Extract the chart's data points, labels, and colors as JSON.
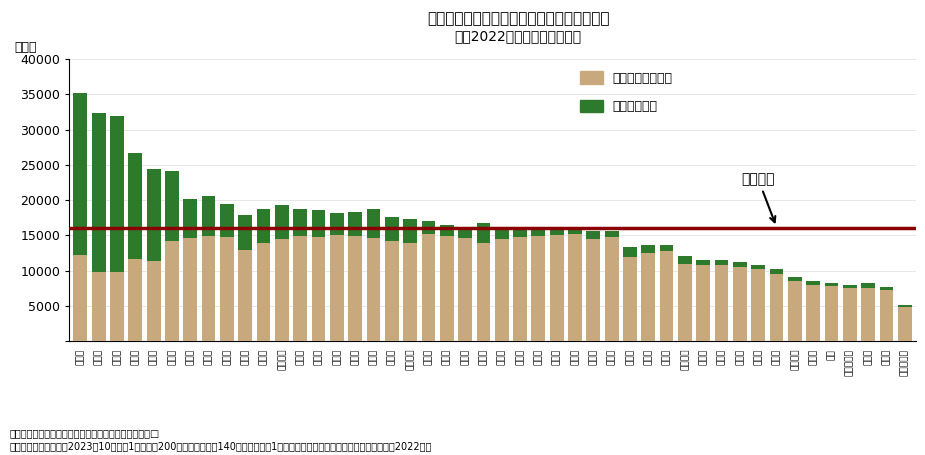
{
  "title_line1": "ガソリン・灯油価格上昇による年間負担増額",
  "title_line2": "（対2022年、一世帯あたり）",
  "ylabel": "（円）",
  "national_avg": 16000,
  "national_avg_label": "全国平均",
  "source_line1": "（出所）総務省統計局「家計調査報告」より筆者試算□",
  "source_line2": "（注）ガソリン価格が2023年10月以降1リットル200円、灯油価格が140円に上昇し、1年間その水準で推移した場合の負担増額（対2022年）",
  "legend_gasoline": "ガソリン負担増分",
  "legend_kerosene": "灯油負担増分",
  "gasoline_color": "#C8A97E",
  "kerosene_color": "#2D7A2D",
  "avg_line_color": "#8B0000",
  "categories": [
    "札幌市",
    "青森市",
    "盛岡市",
    "秋田市",
    "山形市",
    "福島市",
    "長野市",
    "富山市",
    "金沢市",
    "新潟市",
    "福井市",
    "宇都宮市",
    "水戸市",
    "前橋市",
    "甲府市",
    "仙台市",
    "岐阜市",
    "大分市",
    "鹿児島市",
    "宮崎市",
    "熊本市",
    "佐賀市",
    "那覇市",
    "福岡市",
    "高知市",
    "松山市",
    "高松市",
    "徳島市",
    "広島市",
    "岡山市",
    "鳥取市",
    "松江市",
    "山口市",
    "和歌山市",
    "奈良市",
    "大津市",
    "京都市",
    "神戸市",
    "大阪市",
    "名古屋市",
    "静岡市",
    "津市",
    "さいたま市",
    "横浜市",
    "千葉市",
    "東京都区部"
  ],
  "gasoline": [
    12200,
    9800,
    9800,
    11700,
    11400,
    14200,
    14700,
    14900,
    14800,
    13000,
    14000,
    14500,
    14900,
    14800,
    15000,
    14900,
    14700,
    14200,
    14000,
    15200,
    14900,
    14700,
    14000,
    14500,
    14800,
    14900,
    15000,
    15200,
    14500,
    14800,
    12000,
    12500,
    12800,
    11000,
    10800,
    10800,
    10500,
    10200,
    9500,
    8500,
    8000,
    7800,
    7500,
    7600,
    7200,
    4800
  ],
  "kerosene": [
    23000,
    22600,
    22200,
    15000,
    13000,
    10000,
    5500,
    5700,
    4700,
    4900,
    4700,
    4800,
    3900,
    3800,
    3200,
    3400,
    4000,
    3400,
    3300,
    1900,
    1600,
    1400,
    2800,
    1400,
    1100,
    1100,
    900,
    600,
    1100,
    800,
    1400,
    1200,
    900,
    1100,
    700,
    700,
    700,
    600,
    700,
    600,
    600,
    500,
    500,
    600,
    500,
    300
  ],
  "ylim": [
    0,
    40000
  ],
  "yticks": [
    0,
    5000,
    10000,
    15000,
    20000,
    25000,
    30000,
    35000,
    40000
  ],
  "background_color": "#FFFFFF"
}
